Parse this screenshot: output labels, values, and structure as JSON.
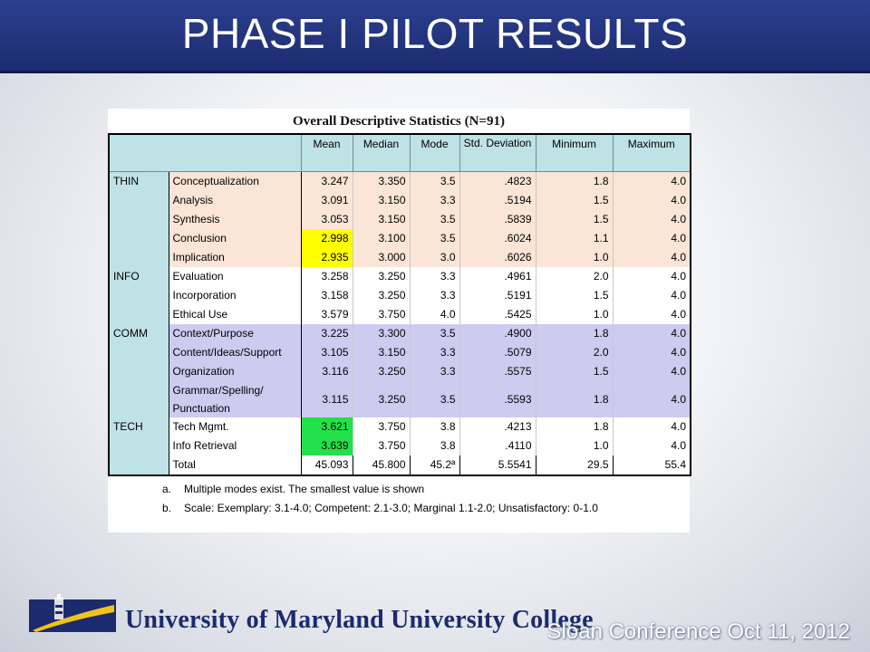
{
  "slide": {
    "title": "PHASE I PILOT RESULTS",
    "footer_institution": "University of Maryland University College",
    "footer_event": "Sloan Conference Oct 11, 2012"
  },
  "table": {
    "title": "Overall Descriptive Statistics (N=91)",
    "headers": [
      "Mean",
      "Median",
      "Mode",
      "Std. Deviation",
      "Minimum",
      "Maximum"
    ],
    "groups": [
      {
        "name": "THIN",
        "rows": [
          {
            "label": "Conceptualization",
            "values": [
              "3.247",
              "3.350",
              "3.5",
              ".4823",
              "1.8",
              "4.0"
            ]
          },
          {
            "label": "Analysis",
            "values": [
              "3.091",
              "3.150",
              "3.3",
              ".5194",
              "1.5",
              "4.0"
            ]
          },
          {
            "label": "Synthesis",
            "values": [
              "3.053",
              "3.150",
              "3.5",
              ".5839",
              "1.5",
              "4.0"
            ]
          },
          {
            "label": "Conclusion",
            "values": [
              "2.998",
              "3.100",
              "3.5",
              ".6024",
              "1.1",
              "4.0"
            ]
          },
          {
            "label": "Implication",
            "values": [
              "2.935",
              "3.000",
              "3.0",
              ".6026",
              "1.0",
              "4.0"
            ]
          }
        ]
      },
      {
        "name": "INFO",
        "rows": [
          {
            "label": "Evaluation",
            "values": [
              "3.258",
              "3.250",
              "3.3",
              ".4961",
              "2.0",
              "4.0"
            ]
          },
          {
            "label": "Incorporation",
            "values": [
              "3.158",
              "3.250",
              "3.3",
              ".5191",
              "1.5",
              "4.0"
            ]
          },
          {
            "label": "Ethical Use",
            "values": [
              "3.579",
              "3.750",
              "4.0",
              ".5425",
              "1.0",
              "4.0"
            ]
          }
        ]
      },
      {
        "name": "COMM",
        "rows": [
          {
            "label": "Context/Purpose",
            "values": [
              "3.225",
              "3.300",
              "3.5",
              ".4900",
              "1.8",
              "4.0"
            ]
          },
          {
            "label": "Content/Ideas/Support",
            "values": [
              "3.105",
              "3.150",
              "3.3",
              ".5079",
              "2.0",
              "4.0"
            ]
          },
          {
            "label": "Organization",
            "values": [
              "3.116",
              "3.250",
              "3.3",
              ".5575",
              "1.5",
              "4.0"
            ]
          },
          {
            "label": "Grammar/Spelling/ Punctuation",
            "values": [
              "3.115",
              "3.250",
              "3.5",
              ".5593",
              "1.8",
              "4.0"
            ]
          }
        ]
      },
      {
        "name": "TECH",
        "rows": [
          {
            "label": "Tech Mgmt.",
            "values": [
              "3.621",
              "3.750",
              "3.8",
              ".4213",
              "1.8",
              "4.0"
            ]
          },
          {
            "label": "Info Retrieval",
            "values": [
              "3.639",
              "3.750",
              "3.8",
              ".4110",
              "1.0",
              "4.0"
            ]
          },
          {
            "label": "Total",
            "values": [
              "45.093",
              "45.800",
              "45.2ª",
              "5.5541",
              "29.5",
              "55.4"
            ]
          }
        ]
      }
    ],
    "highlight_colors": {
      "below_threshold": "#ffff00",
      "highest": "#22e14a"
    },
    "notes": [
      {
        "marker": "a.",
        "text": "Multiple modes exist. The smallest value is shown"
      },
      {
        "marker": "b.",
        "text": "Scale: Exemplary: 3.1-4.0; Competent: 2.1-3.0; Marginal 1.1-2.0; Unsatisfactory: 0-1.0"
      }
    ]
  }
}
